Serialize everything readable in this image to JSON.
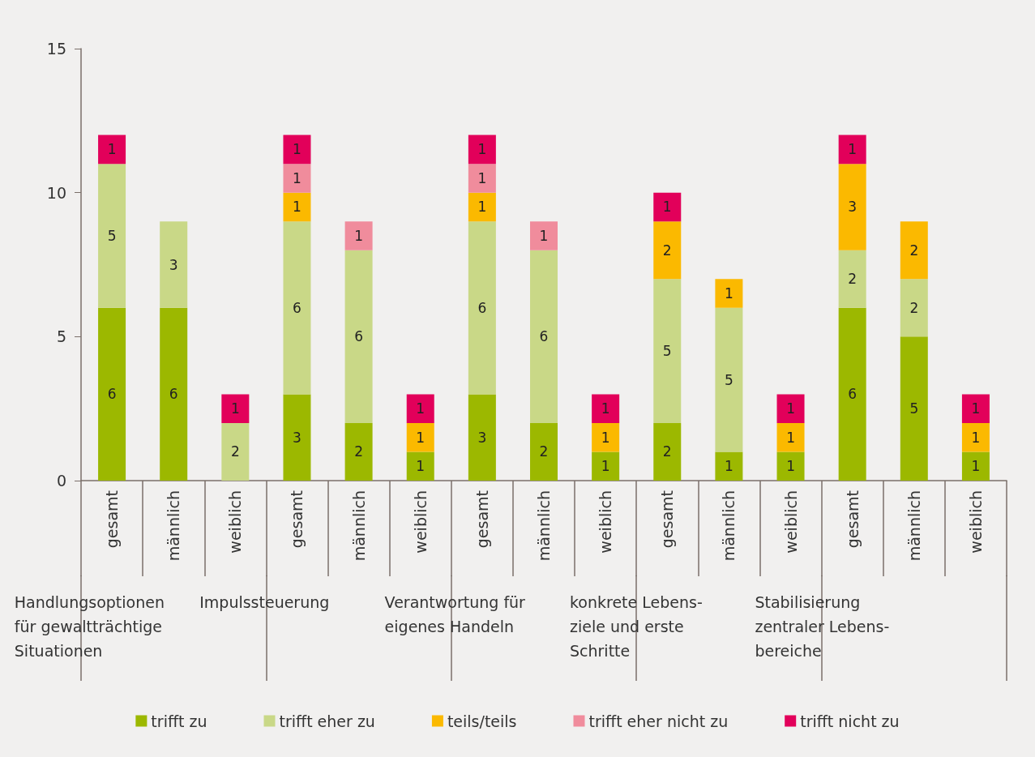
{
  "chart_data": {
    "type": "bar",
    "stacked": true,
    "data_labels": true,
    "grid": false,
    "legend": "bottom",
    "categories": [
      "gesamt",
      "männlich",
      "weiblich",
      "gesamt",
      "männlich",
      "weiblich",
      "gesamt",
      "männlich",
      "weiblich",
      "gesamt",
      "männlich",
      "weiblich",
      "gesamt",
      "männlich",
      "weiblich"
    ],
    "annotations": [
      "Handlungsoptionen\nfür gewaltträchtige\nSituationen",
      "Impulssteuerung",
      "Verantwortung für\neigenes Handeln",
      "konkrete Lebens-\nziele und erste\nSchritte",
      "Stabilisierung\nzentraler Lebens-\nbereiche"
    ],
    "ylim": [
      0,
      15
    ],
    "yticks": [
      0,
      5,
      10,
      15
    ],
    "series": [
      {
        "name": "trifft zu",
        "color": "#9cb800",
        "values": [
          6,
          6,
          null,
          3,
          2,
          1,
          3,
          2,
          1,
          2,
          1,
          1,
          6,
          5,
          1
        ]
      },
      {
        "name": "trifft eher zu",
        "color": "#c9d887",
        "values": [
          5,
          3,
          2,
          6,
          6,
          null,
          6,
          6,
          null,
          5,
          5,
          null,
          2,
          2,
          null
        ]
      },
      {
        "name": "teils/teils",
        "color": "#fbb900",
        "values": [
          null,
          null,
          null,
          1,
          null,
          1,
          1,
          null,
          1,
          2,
          1,
          1,
          3,
          2,
          1
        ]
      },
      {
        "name": "trifft eher nicht zu",
        "color": "#f08c9c",
        "values": [
          null,
          null,
          null,
          1,
          1,
          null,
          1,
          1,
          null,
          null,
          null,
          null,
          null,
          null,
          null
        ]
      },
      {
        "name": "trifft nicht zu",
        "color": "#e2005a",
        "values": [
          1,
          null,
          1,
          1,
          null,
          1,
          1,
          null,
          1,
          1,
          null,
          1,
          1,
          null,
          1
        ]
      }
    ]
  }
}
